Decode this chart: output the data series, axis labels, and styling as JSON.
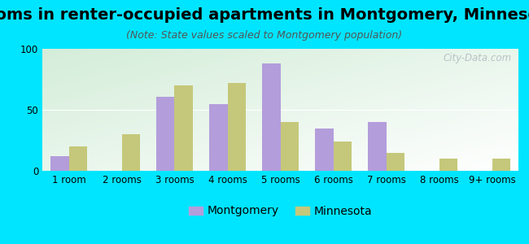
{
  "title": "Rooms in renter-occupied apartments in Montgomery, Minnesota",
  "subtitle": "(Note: State values scaled to Montgomery population)",
  "categories": [
    "1 room",
    "2 rooms",
    "3 rooms",
    "4 rooms",
    "5 rooms",
    "6 rooms",
    "7 rooms",
    "8 rooms",
    "9+ rooms"
  ],
  "montgomery_values": [
    12,
    0,
    61,
    55,
    88,
    35,
    40,
    0,
    0
  ],
  "minnesota_values": [
    20,
    30,
    70,
    72,
    40,
    24,
    15,
    10,
    10
  ],
  "montgomery_color": "#b39ddb",
  "minnesota_color": "#c5c87a",
  "bar_width": 0.35,
  "ylim": [
    0,
    100
  ],
  "yticks": [
    0,
    50,
    100
  ],
  "background_outer": "#00e5ff",
  "title_fontsize": 14,
  "subtitle_fontsize": 9,
  "legend_fontsize": 10,
  "axis_fontsize": 8.5,
  "watermark_text": "City-Data.com",
  "watermark_color": "#b0b8c0"
}
